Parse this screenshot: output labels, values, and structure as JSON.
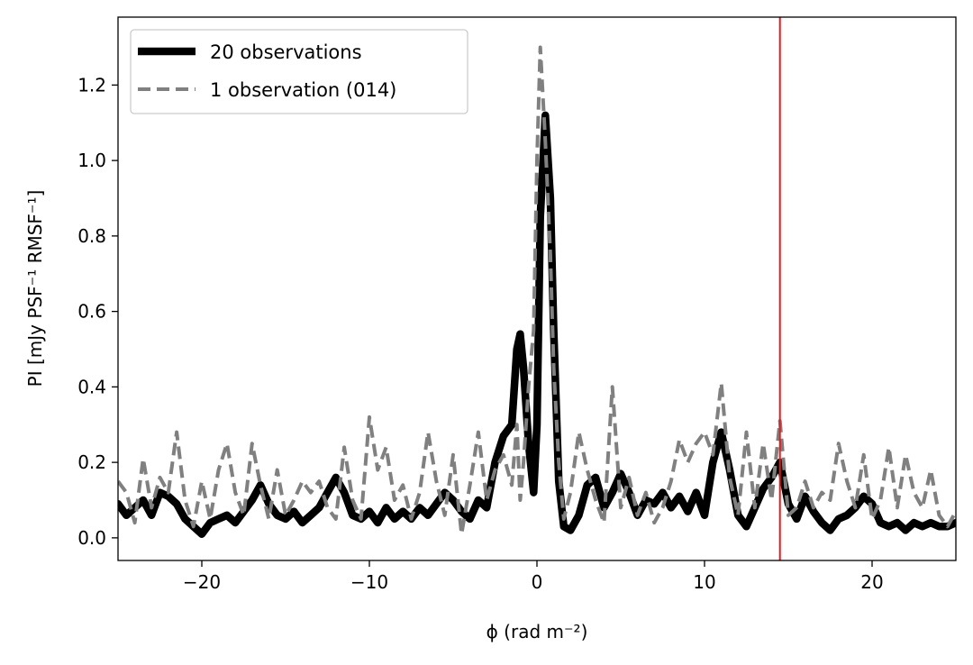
{
  "chart_data": {
    "type": "line",
    "xlabel": "ϕ (rad m⁻²)",
    "ylabel": "PI [mJy PSF⁻¹ RMSF⁻¹]",
    "xlim": [
      -25,
      25
    ],
    "ylim": [
      -0.06,
      1.38
    ],
    "xticks": [
      -20,
      -10,
      0,
      10,
      20
    ],
    "xtick_labels": [
      "−20",
      "−10",
      "0",
      "10",
      "20"
    ],
    "yticks": [
      0.0,
      0.2,
      0.4,
      0.6,
      0.8,
      1.0,
      1.2
    ],
    "ytick_labels": [
      "0.0",
      "0.2",
      "0.4",
      "0.6",
      "0.8",
      "1.0",
      "1.2"
    ],
    "grid": false,
    "legend_position": "top-left",
    "vline": {
      "x": 14.5,
      "color": "#e41a1c"
    },
    "series": [
      {
        "name": "20 observations",
        "color": "#000000",
        "style": "solid",
        "x": [
          -25,
          -24.5,
          -24,
          -23.5,
          -23,
          -22.5,
          -22,
          -21.5,
          -21,
          -20.5,
          -20,
          -19.5,
          -19,
          -18.5,
          -18,
          -17.5,
          -17,
          -16.5,
          -16,
          -15.5,
          -15,
          -14.5,
          -14,
          -13.5,
          -13,
          -12.5,
          -12,
          -11.5,
          -11,
          -10.5,
          -10,
          -9.5,
          -9,
          -8.5,
          -8,
          -7.5,
          -7,
          -6.5,
          -6,
          -5.5,
          -5,
          -4.5,
          -4,
          -3.5,
          -3,
          -2.5,
          -2,
          -1.5,
          -1.2,
          -1,
          -0.8,
          -0.5,
          -0.2,
          0,
          0.2,
          0.5,
          0.8,
          1,
          1.3,
          1.6,
          2,
          2.5,
          3,
          3.5,
          4,
          4.5,
          5,
          5.5,
          6,
          6.5,
          7,
          7.5,
          8,
          8.5,
          9,
          9.5,
          10,
          10.5,
          11,
          11.5,
          12,
          12.5,
          13,
          13.5,
          14,
          14.5,
          15,
          15.5,
          16,
          16.5,
          17,
          17.5,
          18,
          18.5,
          19,
          19.5,
          20,
          20.5,
          21,
          21.5,
          22,
          22.5,
          23,
          23.5,
          24,
          24.5,
          25
        ],
        "values": [
          0.09,
          0.06,
          0.08,
          0.1,
          0.06,
          0.12,
          0.11,
          0.09,
          0.05,
          0.03,
          0.01,
          0.04,
          0.05,
          0.06,
          0.04,
          0.07,
          0.1,
          0.14,
          0.09,
          0.06,
          0.05,
          0.07,
          0.04,
          0.06,
          0.08,
          0.12,
          0.16,
          0.12,
          0.06,
          0.05,
          0.07,
          0.04,
          0.08,
          0.05,
          0.07,
          0.05,
          0.08,
          0.06,
          0.09,
          0.12,
          0.1,
          0.07,
          0.05,
          0.1,
          0.08,
          0.2,
          0.27,
          0.3,
          0.5,
          0.54,
          0.45,
          0.25,
          0.12,
          0.3,
          0.85,
          1.12,
          0.9,
          0.55,
          0.15,
          0.03,
          0.02,
          0.06,
          0.14,
          0.16,
          0.08,
          0.12,
          0.17,
          0.12,
          0.06,
          0.1,
          0.09,
          0.12,
          0.08,
          0.11,
          0.07,
          0.12,
          0.06,
          0.2,
          0.28,
          0.18,
          0.06,
          0.03,
          0.08,
          0.13,
          0.16,
          0.2,
          0.09,
          0.05,
          0.11,
          0.07,
          0.04,
          0.02,
          0.05,
          0.06,
          0.08,
          0.11,
          0.09,
          0.04,
          0.03,
          0.04,
          0.02,
          0.04,
          0.03,
          0.04,
          0.03,
          0.03,
          0.04
        ]
      },
      {
        "name": "1 observation (014)",
        "color": "#808080",
        "style": "dashed",
        "x": [
          -25,
          -24.5,
          -24,
          -23.5,
          -23,
          -22.5,
          -22,
          -21.5,
          -21,
          -20.5,
          -20,
          -19.5,
          -19,
          -18.5,
          -18,
          -17.5,
          -17,
          -16.5,
          -16,
          -15.5,
          -15,
          -14.5,
          -14,
          -13.5,
          -13,
          -12.5,
          -12,
          -11.5,
          -11,
          -10.5,
          -10,
          -9.5,
          -9,
          -8.5,
          -8,
          -7.5,
          -7,
          -6.5,
          -6,
          -5.5,
          -5,
          -4.5,
          -4,
          -3.5,
          -3,
          -2.5,
          -2,
          -1.5,
          -1.2,
          -1,
          -0.8,
          -0.5,
          -0.2,
          0,
          0.2,
          0.5,
          0.8,
          1,
          1.3,
          1.6,
          2,
          2.5,
          3,
          3.5,
          4,
          4.5,
          5,
          5.5,
          6,
          6.5,
          7,
          7.5,
          8,
          8.5,
          9,
          9.5,
          10,
          10.5,
          11,
          11.5,
          12,
          12.5,
          13,
          13.5,
          14,
          14.5,
          15,
          15.5,
          16,
          16.5,
          17,
          17.5,
          18,
          18.5,
          19,
          19.5,
          20,
          20.5,
          21,
          21.5,
          22,
          22.5,
          23,
          23.5,
          24,
          24.5,
          25
        ],
        "values": [
          0.15,
          0.12,
          0.04,
          0.21,
          0.08,
          0.16,
          0.12,
          0.28,
          0.1,
          0.03,
          0.15,
          0.05,
          0.18,
          0.25,
          0.12,
          0.06,
          0.25,
          0.14,
          0.05,
          0.18,
          0.06,
          0.1,
          0.15,
          0.12,
          0.15,
          0.08,
          0.05,
          0.24,
          0.1,
          0.05,
          0.32,
          0.18,
          0.24,
          0.1,
          0.14,
          0.05,
          0.12,
          0.28,
          0.15,
          0.06,
          0.22,
          0.01,
          0.14,
          0.28,
          0.1,
          0.18,
          0.22,
          0.14,
          0.3,
          0.1,
          0.2,
          0.4,
          0.55,
          1.0,
          1.3,
          1.05,
          0.75,
          0.45,
          0.2,
          0.05,
          0.12,
          0.28,
          0.18,
          0.1,
          0.04,
          0.4,
          0.08,
          0.16,
          0.06,
          0.12,
          0.04,
          0.08,
          0.15,
          0.26,
          0.2,
          0.25,
          0.28,
          0.22,
          0.41,
          0.16,
          0.06,
          0.28,
          0.08,
          0.25,
          0.1,
          0.31,
          0.06,
          0.08,
          0.15,
          0.08,
          0.12,
          0.1,
          0.25,
          0.15,
          0.08,
          0.22,
          0.05,
          0.1,
          0.24,
          0.08,
          0.22,
          0.12,
          0.08,
          0.18,
          0.06,
          0.03,
          0.07
        ]
      }
    ]
  }
}
